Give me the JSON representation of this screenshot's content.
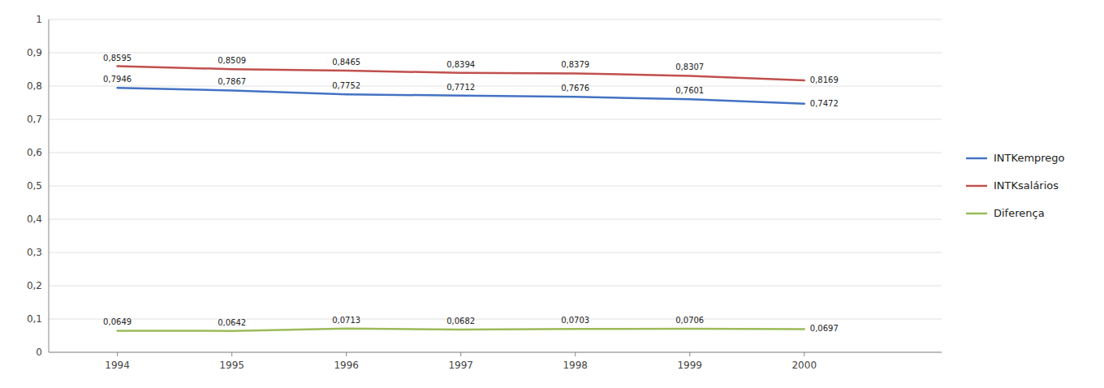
{
  "chart_data": {
    "type": "line",
    "x": [
      1994,
      1995,
      1996,
      1997,
      1998,
      1999,
      2000
    ],
    "xlim": [
      1993.4,
      2001.2
    ],
    "xticks": [
      1994,
      1995,
      1996,
      1997,
      1998,
      1999,
      2000
    ],
    "ylim": [
      0,
      1
    ],
    "yticks": [
      0,
      {
        "value": 0.1,
        "label": "0,1"
      },
      {
        "value": 0.2,
        "label": "0,2"
      },
      {
        "value": 0.3,
        "label": "0,3"
      },
      {
        "value": 0.4,
        "label": "0,4"
      },
      {
        "value": 0.5,
        "label": "0,5"
      },
      {
        "value": 0.6,
        "label": "0,6"
      },
      {
        "value": 0.7,
        "label": "0,7"
      },
      {
        "value": 0.8,
        "label": "0,8"
      },
      {
        "value": 0.9,
        "label": "0,9"
      },
      1
    ],
    "grid": true,
    "legend": "right",
    "data_labels": true,
    "series": [
      {
        "name": "INTKemprego",
        "color": "#4472C4",
        "values": [
          0.7946,
          0.7867,
          0.7752,
          0.7712,
          0.7676,
          0.7601,
          0.7472
        ],
        "value_labels": [
          "0,7946",
          "0,7867",
          "0,7752",
          "0,7712",
          "0,7676",
          "0,7601",
          "0,7472"
        ]
      },
      {
        "name": "INTKsalários",
        "color": "#C0504D",
        "values": [
          0.8595,
          0.8509,
          0.8465,
          0.8394,
          0.8379,
          0.8307,
          0.8169
        ],
        "value_labels": [
          "0,8595",
          "0,8509",
          "0,8465",
          "0,8394",
          "0,8379",
          "0,8307",
          "0,8169"
        ]
      },
      {
        "name": "Diferença",
        "color": "#9BBB59",
        "values": [
          0.0649,
          0.0642,
          0.0713,
          0.0682,
          0.0703,
          0.0706,
          0.0697
        ],
        "value_labels": [
          "0,0649",
          "0,0642",
          "0,0713",
          "0,0682",
          "0,0703",
          "0,0706",
          "0,0697"
        ]
      }
    ]
  }
}
